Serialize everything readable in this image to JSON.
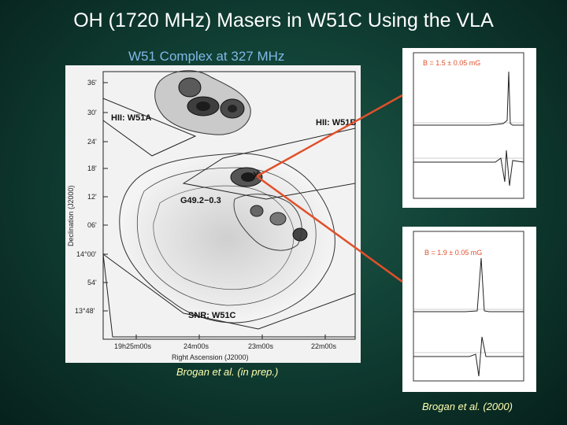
{
  "slide": {
    "title": "OH (1720 MHz) Masers in W51C Using the VLA",
    "subtitle": "W51 Complex at 327 MHz",
    "credit_left": "Brogan et al. (in prep.)",
    "credit_right": "Brogan et al. (2000)"
  },
  "map": {
    "labels": {
      "hii_w51a": "HII: W51A",
      "hii_w51b": "HII: W51B",
      "g49": "G49.2−0.3",
      "snr": "SNR: W51C",
      "marker": "X"
    },
    "y_ticks": [
      "36'",
      "30'",
      "24'",
      "18'",
      "12'",
      "06'",
      "14°00'",
      "54'",
      "13°48'"
    ],
    "x_ticks": [
      "19h25m00s",
      "24m00s",
      "23m00s",
      "22m00s"
    ],
    "x_axis_label": "Right Ascension (J2000)",
    "y_axis_label": "Declination (J2000)"
  },
  "spectra": {
    "top": {
      "bfield": "B = 1.5 ± 0.05 mG"
    },
    "bottom": {
      "bfield": "B = 1.9 ± 0.05 mG"
    }
  },
  "colors": {
    "background": "#114035",
    "title": "#ffffff",
    "subtitle": "#7fb8e6",
    "credit": "#ffffb0",
    "arrow": "#e0502a"
  }
}
